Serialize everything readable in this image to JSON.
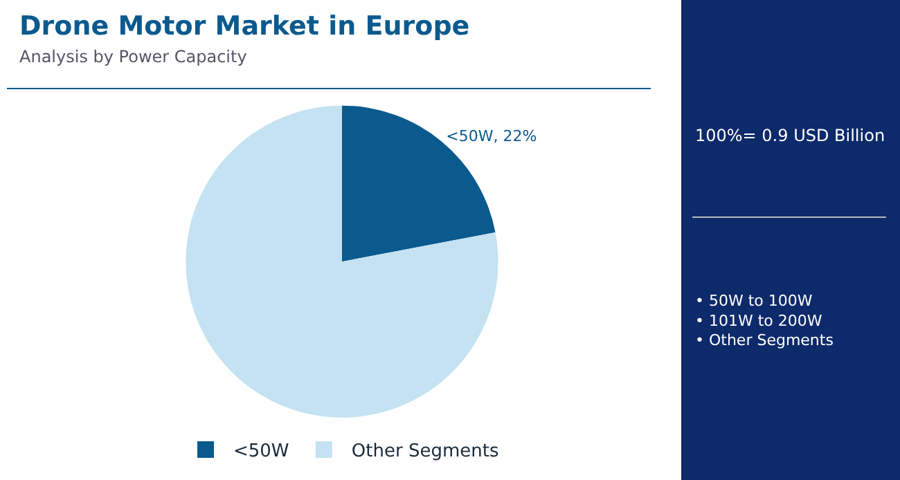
{
  "chart_data": {
    "type": "pie",
    "title": "Drone Motor Market in Europe",
    "subtitle": "Analysis by Power Capacity",
    "categories": [
      "<50W",
      "Other Segments"
    ],
    "values": [
      22,
      78
    ],
    "colors": [
      "#0b5a8e",
      "#c4e2f2"
    ],
    "value_labels": [
      "<50W, 22%",
      null
    ],
    "legend": "bottom",
    "annotations": [
      "100%= 0.9 USD Billion",
      "• 50W to 100W\n• 101W to 200W\n• Other Segments"
    ]
  }
}
